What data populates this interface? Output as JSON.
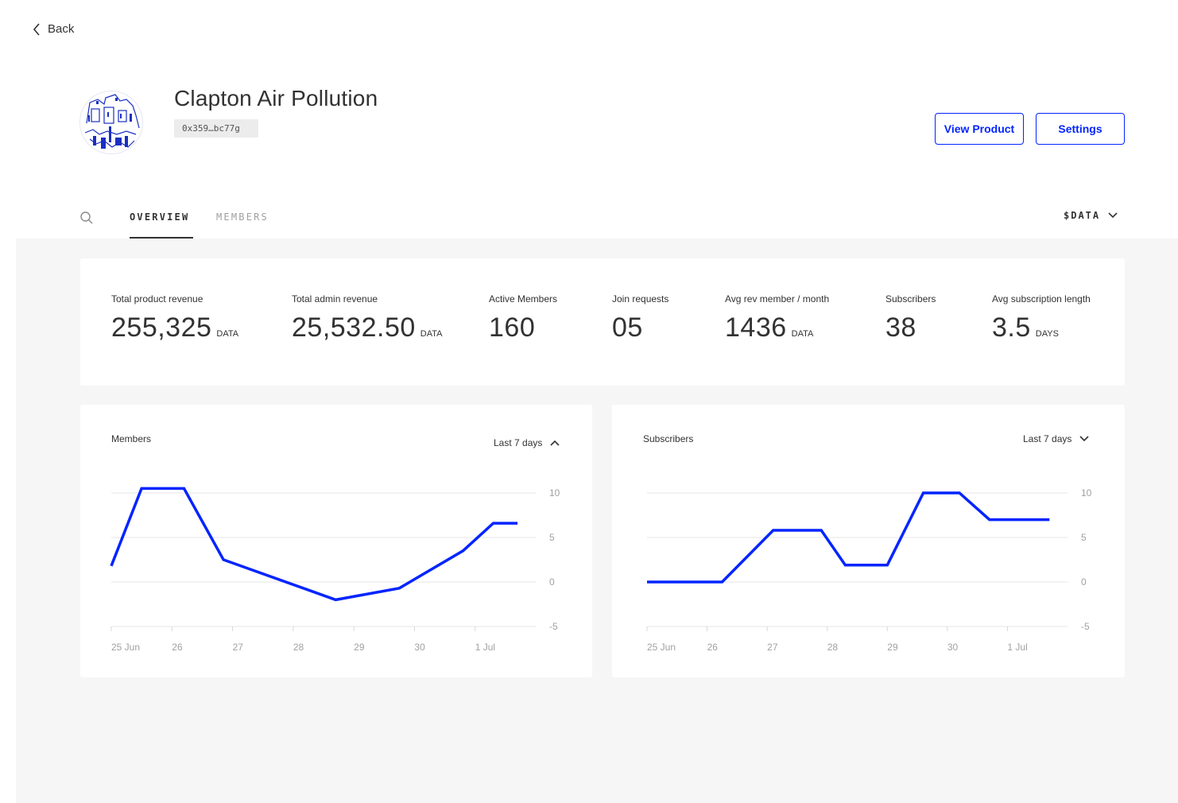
{
  "nav": {
    "back_label": "Back"
  },
  "product": {
    "name": "Clapton Air Pollution",
    "address": "0x359…bc77g"
  },
  "actions": {
    "view_product_label": "View Product",
    "settings_label": "Settings"
  },
  "tabs": {
    "overview": "OVERVIEW",
    "members": "MEMBERS",
    "active": "overview"
  },
  "currency": {
    "selected": "$DATA"
  },
  "accent_color": "#0324ff",
  "stats": [
    {
      "label": "Total product revenue",
      "value": "255,325",
      "unit": "DATA"
    },
    {
      "label": "Total admin revenue",
      "value": "25,532.50",
      "unit": "DATA"
    },
    {
      "label": "Active Members",
      "value": "160",
      "unit": ""
    },
    {
      "label": "Join requests",
      "value": "05",
      "unit": ""
    },
    {
      "label": "Avg rev member / month",
      "value": "1436",
      "unit": "DATA"
    },
    {
      "label": "Subscribers",
      "value": "38",
      "unit": ""
    },
    {
      "label": "Avg subscription length",
      "value": "3.5",
      "unit": "DAYS"
    }
  ],
  "chart_data": [
    {
      "type": "line",
      "title": "Members",
      "range_label": "Last 7 days",
      "x_labels": [
        "25 Jun",
        "26",
        "27",
        "28",
        "29",
        "30",
        "1 Jul"
      ],
      "y_ticks": [
        10,
        5,
        0,
        -5
      ],
      "ylim": [
        -5,
        10
      ],
      "grid": true,
      "x": [
        0,
        0.5,
        1.2,
        1.85,
        3.7,
        4.75,
        5.8,
        6.3,
        6.7
      ],
      "values": [
        1.8,
        10.5,
        10.5,
        2.5,
        -2,
        -0.7,
        3.5,
        6.6,
        6.6
      ]
    },
    {
      "type": "line",
      "title": "Subscribers",
      "range_label": "Last 7 days",
      "x_labels": [
        "25 Jun",
        "26",
        "27",
        "28",
        "29",
        "30",
        "1 Jul"
      ],
      "y_ticks": [
        10,
        5,
        0,
        -5
      ],
      "ylim": [
        -5,
        10
      ],
      "grid": true,
      "x": [
        0,
        1.25,
        2.1,
        2.9,
        3.3,
        4.0,
        4.6,
        5.2,
        5.7,
        6.7
      ],
      "values": [
        0,
        0,
        5.8,
        5.8,
        1.9,
        1.9,
        10,
        10,
        7,
        7
      ]
    }
  ]
}
